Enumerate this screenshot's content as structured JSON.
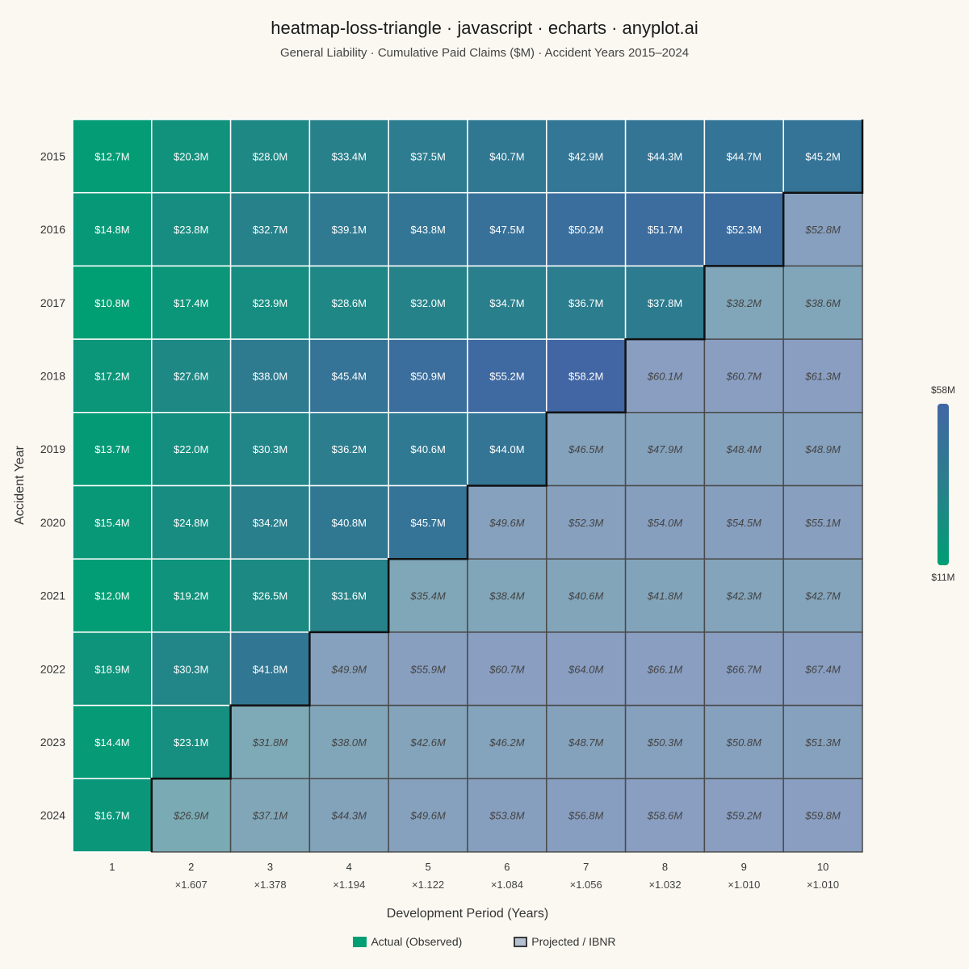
{
  "title": "heatmap-loss-triangle · javascript · echarts · anyplot.ai",
  "subtitle": "General Liability · Cumulative Paid Claims ($M) · Accident Years 2015–2024",
  "legend": {
    "actual": "Actual (Observed)",
    "projected": "Projected / IBNR"
  },
  "colors": {
    "background": "#FAF8F1",
    "scale_low": "#009E73",
    "scale_mid": "#2A7F8C",
    "scale_high": "#4266A4",
    "projected_tint": "#B4C0D2"
  },
  "chart_data": {
    "type": "heatmap",
    "xlabel": "Development Period (Years)",
    "ylabel": "Accident Year",
    "x_categories": [
      "1",
      "2",
      "3",
      "4",
      "5",
      "6",
      "7",
      "8",
      "9",
      "10"
    ],
    "development_factors": [
      "",
      "×1.607",
      "×1.378",
      "×1.194",
      "×1.122",
      "×1.084",
      "×1.056",
      "×1.032",
      "×1.010",
      "×1.010"
    ],
    "y_categories": [
      "2015",
      "2016",
      "2017",
      "2018",
      "2019",
      "2020",
      "2021",
      "2022",
      "2023",
      "2024"
    ],
    "values": [
      [
        12.7,
        20.3,
        28.0,
        33.4,
        37.5,
        40.7,
        42.9,
        44.3,
        44.7,
        45.2
      ],
      [
        14.8,
        23.8,
        32.7,
        39.1,
        43.8,
        47.5,
        50.2,
        51.7,
        52.3,
        52.8
      ],
      [
        10.8,
        17.4,
        23.9,
        28.6,
        32.0,
        34.7,
        36.7,
        37.8,
        38.2,
        38.6
      ],
      [
        17.2,
        27.6,
        38.0,
        45.4,
        50.9,
        55.2,
        58.2,
        60.1,
        60.7,
        61.3
      ],
      [
        13.7,
        22.0,
        30.3,
        36.2,
        40.6,
        44.0,
        46.5,
        47.9,
        48.4,
        48.9
      ],
      [
        15.4,
        24.8,
        34.2,
        40.8,
        45.7,
        49.6,
        52.3,
        54.0,
        54.5,
        55.1
      ],
      [
        12.0,
        19.2,
        26.5,
        31.6,
        35.4,
        38.4,
        40.6,
        41.8,
        42.3,
        42.7
      ],
      [
        18.9,
        30.3,
        41.8,
        49.9,
        55.9,
        60.7,
        64.0,
        66.1,
        66.7,
        67.4
      ],
      [
        14.4,
        23.1,
        31.8,
        38.0,
        42.6,
        46.2,
        48.7,
        50.3,
        50.8,
        51.3
      ],
      [
        16.7,
        26.9,
        37.1,
        44.3,
        49.6,
        53.8,
        56.8,
        58.6,
        59.2,
        59.8
      ]
    ],
    "actual_periods_per_row": [
      10,
      9,
      8,
      7,
      6,
      5,
      4,
      3,
      2,
      1
    ],
    "value_prefix": "$",
    "value_suffix": "M",
    "colorscale": {
      "min": 11,
      "max": 58,
      "min_label": "$11M",
      "max_label": "$58M"
    }
  }
}
